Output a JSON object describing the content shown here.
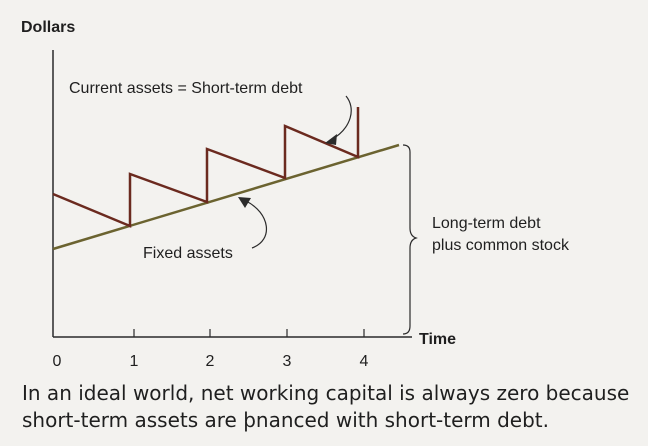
{
  "axes": {
    "y_title": "Dollars",
    "x_title": "Time",
    "x_ticks": [
      "0",
      "1",
      "2",
      "3",
      "4"
    ]
  },
  "annotations": {
    "current_assets": "Current assets = Short-term debt",
    "fixed_assets": "Fixed assets",
    "long_term_line1": "Long-term debt",
    "long_term_line2": "plus common stock"
  },
  "caption": {
    "line1": "In an ideal world, net working capital is always zero because",
    "line2": "short-term assets are þnanced with short-term debt."
  },
  "colors": {
    "fixed_assets_line": "#6b6330",
    "current_assets_line": "#6b2a1f",
    "axis": "#2b2b2b"
  }
}
